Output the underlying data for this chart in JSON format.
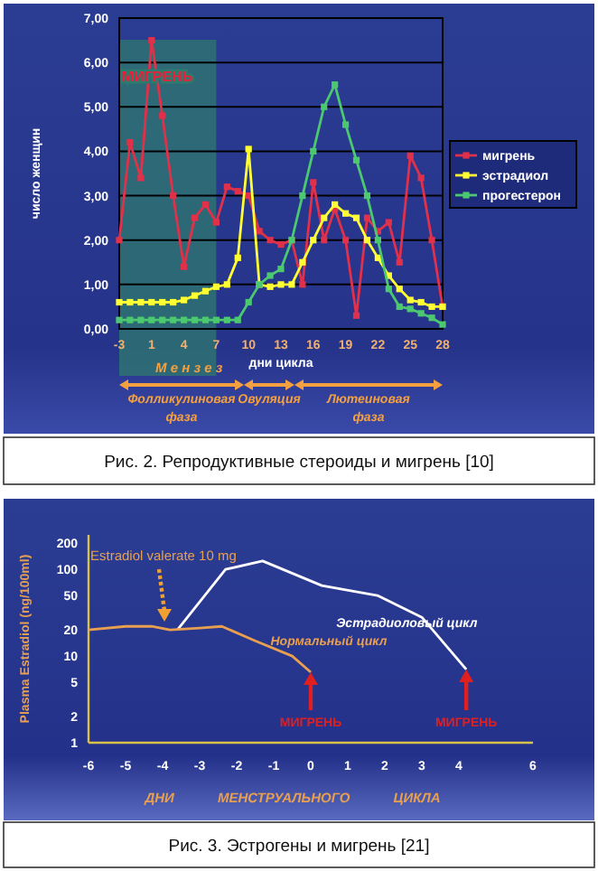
{
  "chart_data": [
    {
      "type": "line",
      "xlabel": "дни цикла",
      "ylabel": "число женщин",
      "categories": [
        "-3",
        null,
        null,
        "1",
        null,
        null,
        "4",
        null,
        null,
        "7",
        null,
        null,
        "10",
        null,
        null,
        "13",
        null,
        null,
        "16",
        null,
        null,
        "19",
        null,
        null,
        "22",
        null,
        null,
        "25",
        null,
        null,
        "28"
      ],
      "ylim": [
        0,
        7
      ],
      "yticks": [
        {
          "value": 0,
          "label": "0,00"
        },
        {
          "value": 1,
          "label": "1,00"
        },
        {
          "value": 2,
          "label": "2,00"
        },
        {
          "value": 3,
          "label": "3,00"
        },
        {
          "value": 4,
          "label": "4,00"
        },
        {
          "value": 5,
          "label": "5,00"
        },
        {
          "value": 6,
          "label": "6,00"
        },
        {
          "value": 7,
          "label": "7,00"
        }
      ],
      "grid": "y",
      "legend": "right",
      "marker": "square",
      "series": [
        {
          "name": "мигрень",
          "color": "#e0304a",
          "values": [
            2.0,
            4.2,
            3.4,
            6.5,
            4.8,
            3.0,
            1.4,
            2.5,
            2.8,
            2.4,
            3.2,
            3.1,
            3.0,
            2.2,
            2.0,
            1.9,
            2.0,
            1.0,
            3.3,
            2.0,
            2.7,
            2.0,
            0.3,
            2.5,
            2.2,
            2.4,
            1.5,
            3.9,
            3.4,
            2.0,
            0.5
          ]
        },
        {
          "name": "эстрадиол",
          "color": "#ffff33",
          "values": [
            0.6,
            0.6,
            0.6,
            0.6,
            0.6,
            0.6,
            0.65,
            0.75,
            0.85,
            0.95,
            1.0,
            1.6,
            4.05,
            1.0,
            0.95,
            1.0,
            1.0,
            1.5,
            2.0,
            2.5,
            2.8,
            2.6,
            2.5,
            2.0,
            1.6,
            1.2,
            0.9,
            0.65,
            0.6,
            0.5,
            0.5
          ]
        },
        {
          "name": "прогестерон",
          "color": "#4cc870",
          "values": [
            0.2,
            0.2,
            0.2,
            0.2,
            0.2,
            0.2,
            0.2,
            0.2,
            0.2,
            0.2,
            0.2,
            0.2,
            0.6,
            1.0,
            1.2,
            1.35,
            2.0,
            3.0,
            4.0,
            5.0,
            5.5,
            4.6,
            3.8,
            3.0,
            2.0,
            0.9,
            0.5,
            0.45,
            0.35,
            0.25,
            0.1
          ]
        }
      ],
      "bands": [
        {
          "axis": "x",
          "from": "-3",
          "to": "7",
          "label": "М е н з е з",
          "color": "#2f7a6e"
        }
      ],
      "annotations": [
        "МИГРЕНЬ",
        "Фолликулиновая фаза",
        "Овуляция",
        "Лютеиновая фаза",
        "Рис. 2. Репродуктивные стероиды и мигрень [10]"
      ]
    },
    {
      "type": "line",
      "xlabel": "ДНИ МЕНСТРУАЛЬНОГО ЦИКЛА",
      "ylabel": "Plasma Estradiol (ng/100ml)",
      "log": "y",
      "xlim": [
        -6,
        6
      ],
      "xticks": [
        -6,
        -5,
        -4,
        -3,
        -2,
        -1,
        0,
        1,
        2,
        3,
        4,
        6
      ],
      "ylim": [
        1,
        250
      ],
      "yticks": [
        1,
        2,
        5,
        10,
        20,
        50,
        100,
        200
      ],
      "series": [
        {
          "name": "Эстрадиоловый цикл",
          "color": "#ffffff",
          "x": [
            -3.6,
            -2.3,
            -1.3,
            0.3,
            1.8,
            3,
            4.2
          ],
          "values": [
            20,
            100,
            125,
            65,
            50,
            28,
            7
          ]
        },
        {
          "name": "Нормальный цикл",
          "color": "#e8a050",
          "x": [
            -6,
            -5,
            -4.3,
            -3.8,
            -3,
            -2.4,
            -1.5,
            -0.5,
            0
          ],
          "values": [
            20,
            22,
            22,
            20,
            21,
            22,
            15,
            10,
            6.5
          ]
        }
      ],
      "annotations": [
        "Estradiol valerate 10 mg",
        {
          "text": "МИГРЕНЬ",
          "x": 0,
          "y": 6.5
        },
        {
          "text": "МИГРЕНЬ",
          "x": 4.2,
          "y": 7
        },
        "Рис. 3. Эстрогены и мигрень [21]"
      ]
    }
  ]
}
